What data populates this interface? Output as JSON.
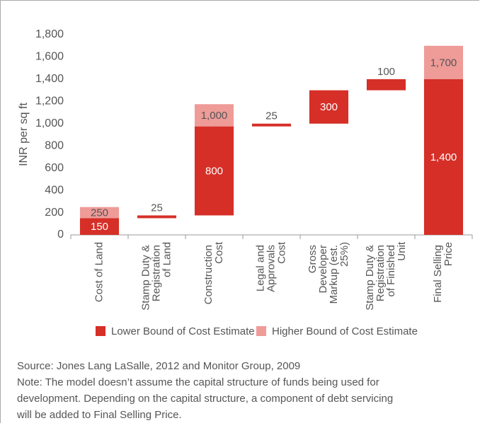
{
  "chart_data": {
    "type": "waterfall",
    "y_label": "INR per sq ft",
    "categories": [
      "Cost of Land",
      "Stamp Duty & Registration of Land",
      "Construction Cost",
      "Legal and Approvals Cost",
      "Gross Developer Markup (est. 25%)",
      "Stamp Duty & Registration of Finished Unit",
      "Final Selling Price"
    ],
    "series": [
      {
        "name": "Lower Bound of Cost Estimate",
        "color": "#d52f27",
        "values": [
          150,
          25,
          800,
          25,
          300,
          100,
          1400
        ],
        "value_labels": [
          "150",
          "25",
          "800",
          "25",
          "300",
          "100",
          "1,400"
        ]
      },
      {
        "name": "Higher Bound of Cost Estimate",
        "color": "#ef9b98",
        "values": [
          250,
          null,
          1000,
          null,
          null,
          null,
          1700
        ],
        "value_labels": [
          "250",
          null,
          "1,000",
          null,
          null,
          null,
          "1,700"
        ]
      }
    ],
    "ylim": [
      0,
      1800
    ],
    "yticks": [
      0,
      200,
      400,
      600,
      800,
      {
        "value": 1000,
        "label": "1,000"
      },
      {
        "value": 1200,
        "label": "1,200"
      },
      {
        "value": 1400,
        "label": "1,400"
      },
      {
        "value": 1600,
        "label": "1,600"
      },
      {
        "value": 1800,
        "label": "1,800"
      }
    ],
    "legend": "bottom",
    "source": "Source: Jones Lang LaSalle, 2012 and Monitor Group, 2009",
    "note": [
      "Note: The model doesn’t assume the capital structure of funds being used for",
      "development. Depending on the capital structure, a component of debt servicing",
      "will be added to Final Selling Price."
    ]
  }
}
